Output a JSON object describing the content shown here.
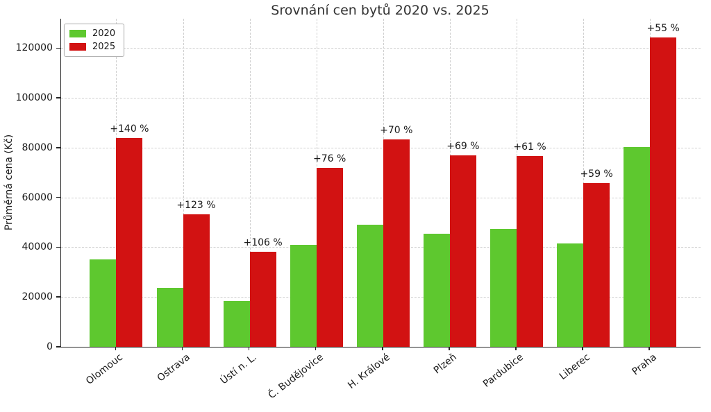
{
  "chart_data": {
    "type": "bar",
    "title": "Srovnání cen bytů 2020 vs. 2025",
    "ylabel": "Průměrná cena (Kč)",
    "xlabel": "",
    "categories": [
      "Olomouc",
      "Ostrava",
      "Ústí n. L.",
      "Č. Budějovice",
      "H. Králové",
      "Plzeň",
      "Pardubice",
      "Liberec",
      "Praha"
    ],
    "series": [
      {
        "name": "2020",
        "color": "#5ec82f",
        "values": [
          35000,
          23800,
          18500,
          40900,
          49000,
          45500,
          47500,
          41400,
          80200
        ]
      },
      {
        "name": "2025",
        "color": "#d21212",
        "values": [
          84000,
          53100,
          38100,
          72000,
          83300,
          76900,
          76500,
          65800,
          124300
        ]
      }
    ],
    "bar_labels": [
      "+140 %",
      "+123 %",
      "+106 %",
      "+76 %",
      "+70 %",
      "+69 %",
      "+61 %",
      "+59 %",
      "+55 %"
    ],
    "yticks": [
      0,
      20000,
      40000,
      60000,
      80000,
      100000,
      120000
    ],
    "ylim": [
      0,
      131800
    ],
    "grid": "both axes, dashed light gray",
    "grid_color": "#cfcfcf",
    "legend_position": "upper left"
  }
}
